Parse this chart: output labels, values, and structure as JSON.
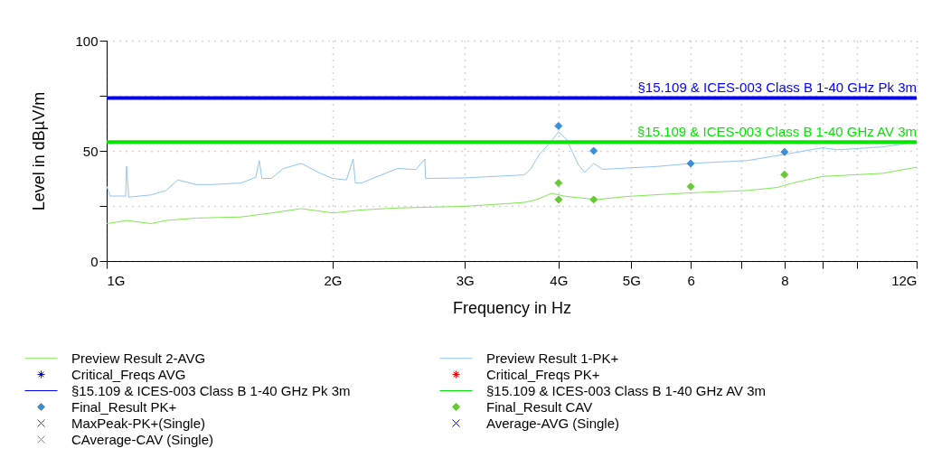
{
  "chart_data": {
    "type": "line",
    "xlabel": "Frequency in Hz",
    "ylabel": "Level in dBµV/m",
    "log": "x",
    "grid": true,
    "legend": "bottom",
    "xlim": [
      1,
      12
    ],
    "xticks": [
      {
        "value": 1,
        "label": "1G"
      },
      {
        "value": 2,
        "label": "2G"
      },
      {
        "value": 3,
        "label": "3G"
      },
      {
        "value": 4,
        "label": "4G"
      },
      {
        "value": 5,
        "label": "5G"
      },
      6,
      {
        "value": 7,
        "label": null
      },
      8,
      {
        "value": 9,
        "label": null
      },
      {
        "value": 10,
        "label": null
      },
      {
        "value": 12,
        "label": "12G"
      }
    ],
    "ylim": [
      0,
      100
    ],
    "yticks": [
      0,
      {
        "value": 25,
        "label": null
      },
      50,
      {
        "value": 75,
        "label": null
      },
      100
    ],
    "series": [
      {
        "name": "Preview Result 2-AVG",
        "marker": "none",
        "color": "#80e850",
        "x": [
          1.0,
          1.063,
          1.145,
          1.199,
          1.315,
          1.51,
          1.657,
          1.817,
          2.002,
          2.186,
          2.442,
          2.993,
          3.601,
          3.74,
          3.914,
          4.099,
          4.5,
          4.931,
          5.95,
          7.138,
          7.83,
          8.2,
          8.993,
          10.82,
          12.0
        ],
        "values": [
          17,
          18.4,
          17,
          18.4,
          19.5,
          20,
          21.8,
          23.8,
          21.8,
          23.2,
          24.1,
          24.8,
          26.6,
          27.9,
          30.7,
          29.3,
          27.9,
          29.3,
          30.9,
          32,
          33.4,
          35.4,
          38.4,
          39.8,
          42.6
        ]
      },
      {
        "name": "Preview Result 1-PK+",
        "marker": "none",
        "color": "#90c4f2",
        "x": [
          1.0,
          1.01,
          1.06,
          1.063,
          1.07,
          1.145,
          1.199,
          1.244,
          1.315,
          1.377,
          1.51,
          1.58,
          1.597,
          1.61,
          1.657,
          1.719,
          1.817,
          1.92,
          2.002,
          2.087,
          2.13,
          2.145,
          2.186,
          2.311,
          2.442,
          2.582,
          2.654,
          2.66,
          2.993,
          3.601,
          3.669,
          3.772,
          3.914,
          4.0,
          4.099,
          4.253,
          4.333,
          4.455,
          4.58,
          4.931,
          5.409,
          6.015,
          7.138,
          8.01,
          8.993,
          9.42,
          10.82,
          12.0
        ],
        "values": [
          34,
          29.5,
          29.5,
          43,
          29,
          30,
          32,
          36.8,
          34.7,
          34.7,
          35.4,
          38,
          45.6,
          37.5,
          37.5,
          42,
          44.3,
          40,
          37.5,
          36.8,
          46.3,
          35.4,
          35.4,
          38.8,
          42,
          41.5,
          46.3,
          37.5,
          37.7,
          39.1,
          41.6,
          48.4,
          54.5,
          58.6,
          55.2,
          43.6,
          40.2,
          44.3,
          41.6,
          42.2,
          42.9,
          44.3,
          45.6,
          48.4,
          51.4,
          50.5,
          51.8,
          54
        ]
      },
      {
        "name": "Critical_Freqs AVG",
        "type": "scatter",
        "marker": "star",
        "color": "#0000ff"
      },
      {
        "name": "Critical_Freqs PK+",
        "type": "scatter",
        "marker": "star",
        "color": "#ff0000"
      },
      {
        "name": "§15.109 & ICES-003 Class B 1-40 GHz Pk 3m",
        "type": "step",
        "marker": "none",
        "color": "#0000ff",
        "x": [
          1.0,
          12.0
        ],
        "values": [
          74,
          74
        ]
      },
      {
        "name": "§15.109 & ICES-003 Class B 1-40 GHz AV 3m",
        "type": "step",
        "marker": "none",
        "color": "#00e600",
        "x": [
          1.0,
          12.0
        ],
        "values": [
          54,
          54
        ]
      },
      {
        "name": "Final_Result PK+",
        "type": "scatter",
        "marker": "diamond",
        "color": "#3b8fd8",
        "x": [
          4.0,
          4.455,
          6.0,
          8.0
        ],
        "values": [
          61.3,
          50,
          44.3,
          49.5
        ]
      },
      {
        "name": "Final_Result CAV",
        "type": "scatter",
        "marker": "diamond",
        "color": "#66c837",
        "x": [
          4.0,
          4.0,
          4.455,
          6.0,
          8.0
        ],
        "values": [
          35.4,
          27.9,
          27.9,
          33.8,
          39.2
        ]
      },
      {
        "name": "MaxPeak-PK+(Single)",
        "type": "scatter",
        "marker": "cross",
        "color": "#ff0000"
      },
      {
        "name": "Average-AVG (Single)",
        "type": "scatter",
        "marker": "cross",
        "color": "#0000ff"
      },
      {
        "name": "CAverage-CAV (Single)",
        "type": "scatter",
        "marker": "cross",
        "color": "#00e600"
      }
    ],
    "annotations": [
      {
        "text": "§15.109 & ICES-003 Class B 1-40 GHz Pk 3m",
        "x": 12,
        "y": 74
      },
      {
        "text": "§15.109 & ICES-003 Class B 1-40 GHz AV 3m",
        "x": 12,
        "y": 54
      }
    ]
  }
}
